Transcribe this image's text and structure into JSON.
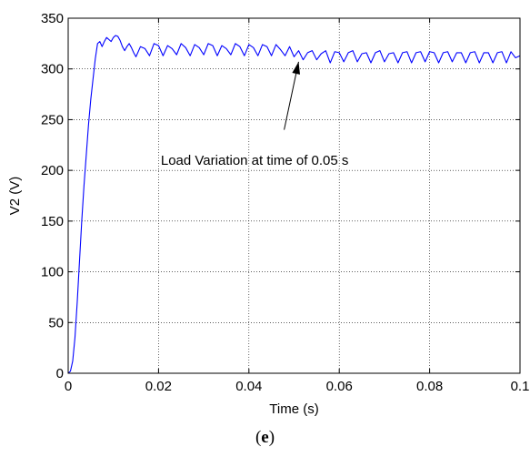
{
  "chart_data": {
    "type": "line",
    "xlabel": "Time (s)",
    "ylabel": "V2 (V)",
    "xlim": [
      0,
      0.1
    ],
    "ylim": [
      0,
      350
    ],
    "xticks": [
      0,
      0.02,
      0.04,
      0.06,
      0.08,
      0.1
    ],
    "xtick_labels": [
      "0",
      "0.02",
      "0.04",
      "0.06",
      "0.08",
      "0.1"
    ],
    "yticks": [
      0,
      50,
      100,
      150,
      200,
      250,
      300,
      350
    ],
    "ytick_labels": [
      "0",
      "50",
      "100",
      "150",
      "200",
      "250",
      "300",
      "350"
    ],
    "grid": true,
    "line_color": "#0000ff",
    "series": [
      {
        "x": [
          0,
          0.0005,
          0.001,
          0.0015,
          0.002,
          0.0025,
          0.003,
          0.0035,
          0.004,
          0.0045,
          0.005,
          0.0055,
          0.006,
          0.0065,
          0.007,
          0.0075,
          0.008,
          0.0085,
          0.009,
          0.0095,
          0.01,
          0.0105,
          0.011,
          0.0115,
          0.012,
          0.0125,
          0.013,
          0.0135,
          0.014,
          0.0145,
          0.015,
          0.016,
          0.017,
          0.018,
          0.019,
          0.02,
          0.021,
          0.022,
          0.023,
          0.024,
          0.025,
          0.026,
          0.027,
          0.028,
          0.029,
          0.03,
          0.031,
          0.032,
          0.033,
          0.034,
          0.035,
          0.036,
          0.037,
          0.038,
          0.039,
          0.04,
          0.041,
          0.042,
          0.043,
          0.044,
          0.045,
          0.046,
          0.047,
          0.048,
          0.049,
          0.05,
          0.051,
          0.052,
          0.053,
          0.054,
          0.055,
          0.056,
          0.057,
          0.058,
          0.059,
          0.06,
          0.061,
          0.062,
          0.063,
          0.064,
          0.065,
          0.066,
          0.067,
          0.068,
          0.069,
          0.07,
          0.071,
          0.072,
          0.073,
          0.074,
          0.075,
          0.076,
          0.077,
          0.078,
          0.079,
          0.08,
          0.081,
          0.082,
          0.083,
          0.084,
          0.085,
          0.086,
          0.087,
          0.088,
          0.089,
          0.09,
          0.091,
          0.092,
          0.093,
          0.094,
          0.095,
          0.096,
          0.097,
          0.098,
          0.099,
          0.1
        ],
        "y": [
          0,
          2,
          12,
          35,
          70,
          110,
          150,
          185,
          215,
          245,
          270,
          290,
          310,
          325,
          327,
          322,
          327,
          331,
          329,
          327,
          331,
          333,
          332,
          328,
          322,
          318,
          322,
          325,
          321,
          316,
          312,
          322,
          320,
          313,
          325,
          323,
          313,
          323,
          320,
          314,
          325,
          321,
          313,
          324,
          321,
          314,
          325,
          323,
          313,
          323,
          320,
          314,
          325,
          322,
          313,
          324,
          321,
          313,
          324,
          322,
          313,
          324,
          319,
          313,
          322,
          312,
          318,
          309,
          316,
          318,
          309,
          315,
          318,
          306,
          317,
          316,
          307,
          316,
          318,
          307,
          315,
          316,
          306,
          316,
          318,
          307,
          315,
          316,
          306,
          316,
          317,
          306,
          316,
          317,
          307,
          317,
          316,
          306,
          316,
          317,
          307,
          316,
          316,
          306,
          316,
          317,
          306,
          316,
          316,
          306,
          316,
          317,
          306,
          317,
          311,
          313
        ]
      }
    ],
    "annotation": {
      "text": "Load Variation at time of 0.05 s",
      "text_x": 0.0205,
      "text_y": 200,
      "arrow_from": [
        0.0478,
        240
      ],
      "arrow_to": [
        0.051,
        307
      ]
    }
  },
  "panel_label": {
    "open": "(",
    "letter": "e",
    "close": ")"
  }
}
